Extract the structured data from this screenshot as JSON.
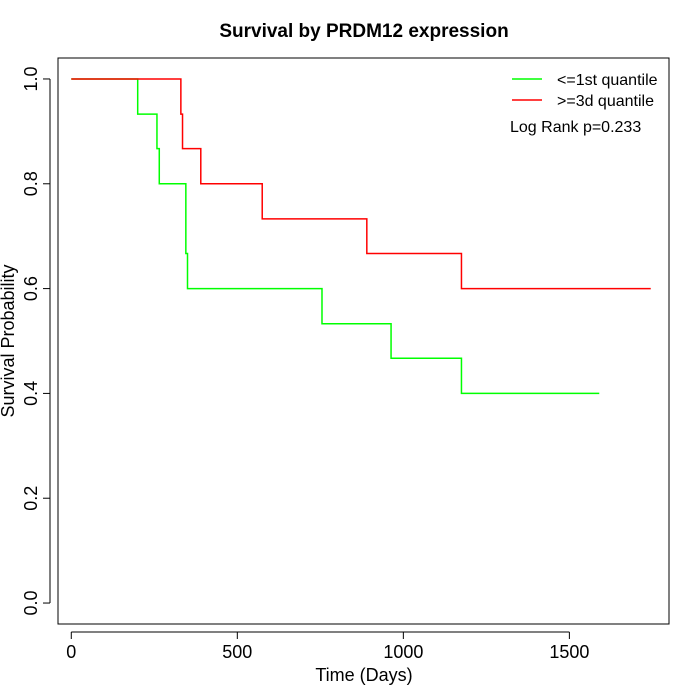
{
  "chart_data": {
    "type": "line",
    "title": "Survival by PRDM12 expression",
    "xlabel": "Time (Days)",
    "ylabel": "Survival Probability",
    "xlim": [
      -40,
      1800
    ],
    "ylim": [
      -0.04,
      1.04
    ],
    "xticks": [
      0,
      500,
      1000,
      1500
    ],
    "yticks": [
      0.0,
      0.2,
      0.4,
      0.6,
      0.8,
      1.0
    ],
    "xtick_labels": [
      "0",
      "500",
      "1000",
      "1500"
    ],
    "ytick_labels": [
      "0.0",
      "0.2",
      "0.4",
      "0.6",
      "0.8",
      "1.0"
    ],
    "grid": false,
    "legend_position": "top-right",
    "annotation": "Log Rank p=0.233",
    "series": [
      {
        "name": "<=1st quantile",
        "color": "#00ff00",
        "step": true,
        "x": [
          0,
          200,
          258,
          265,
          345,
          350,
          755,
          963,
          1175,
          1590
        ],
        "y": [
          1.0,
          0.933,
          0.867,
          0.8,
          0.667,
          0.6,
          0.533,
          0.467,
          0.4,
          0.4
        ]
      },
      {
        "name": ">=3d quantile",
        "color": "#ff0000",
        "step": true,
        "x": [
          0,
          330,
          335,
          390,
          575,
          890,
          1175,
          1745
        ],
        "y": [
          1.0,
          0.933,
          0.867,
          0.8,
          0.733,
          0.667,
          0.6,
          0.6
        ]
      }
    ]
  }
}
